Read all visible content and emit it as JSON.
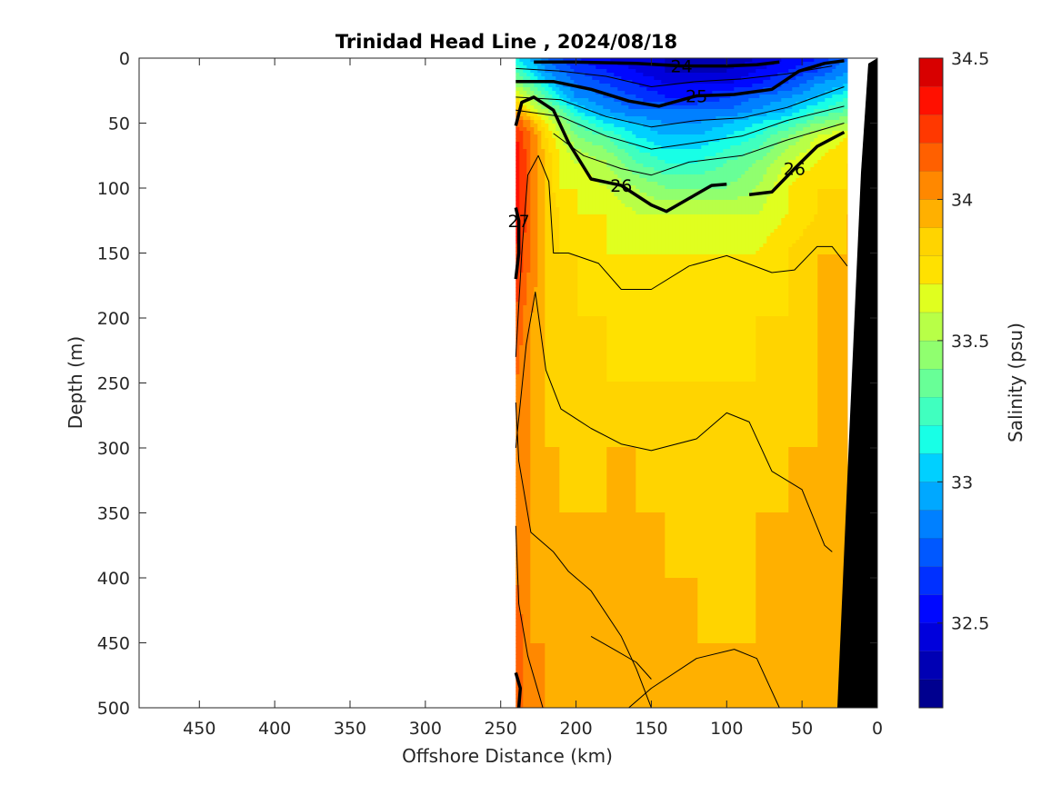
{
  "chart_data": {
    "type": "heatmap",
    "title": "Trinidad Head Line , 2024/08/18",
    "xlabel": "Offshore Distance (km)",
    "ylabel": "Depth (m)",
    "colorbar_label": "Salinity (psu)",
    "xlim": [
      490,
      0
    ],
    "ylim": [
      0,
      500
    ],
    "x_reversed": true,
    "y_reversed": true,
    "xticks": [
      450,
      400,
      350,
      300,
      250,
      200,
      150,
      100,
      50,
      0
    ],
    "yticks": [
      0,
      50,
      100,
      150,
      200,
      250,
      300,
      350,
      400,
      450,
      500
    ],
    "colorbar_range": [
      32.2,
      34.5
    ],
    "colorbar_step": 0.1,
    "colorbar_ticks": [
      32.5,
      33,
      33.5,
      34,
      34.5
    ],
    "colors": [
      "#00008f",
      "#0000b4",
      "#0000dc",
      "#0008ff",
      "#0030ff",
      "#0058ff",
      "#0080ff",
      "#00a8ff",
      "#00d0ff",
      "#18ffe6",
      "#40ffbf",
      "#68ff97",
      "#90ff6f",
      "#b8ff47",
      "#e0ff1f",
      "#ffe100",
      "#ffd400",
      "#ffb000",
      "#ff8800",
      "#ff6000",
      "#ff3800",
      "#ff1000",
      "#d80000",
      "#af0000"
    ],
    "data_extent_km": [
      240,
      20
    ],
    "bathymetry_color": "#000000",
    "x_km": [
      240,
      230,
      220,
      210,
      200,
      180,
      160,
      140,
      120,
      100,
      80,
      60,
      40,
      20
    ],
    "depth_m": [
      0,
      10,
      20,
      30,
      40,
      50,
      60,
      80,
      100,
      120,
      150,
      200,
      250,
      300,
      350,
      400,
      450,
      500
    ],
    "salinity": [
      [
        33.1,
        33.0,
        32.8,
        32.7,
        32.6,
        32.5,
        32.4,
        32.4,
        32.3,
        32.3,
        32.4,
        32.5,
        32.6,
        32.8
      ],
      [
        33.3,
        33.1,
        32.9,
        32.8,
        32.7,
        32.6,
        32.5,
        32.4,
        32.4,
        32.4,
        32.5,
        32.6,
        32.7,
        32.9
      ],
      [
        33.5,
        33.3,
        33.1,
        32.9,
        32.8,
        32.7,
        32.6,
        32.5,
        32.5,
        32.5,
        32.6,
        32.7,
        32.9,
        33.0
      ],
      [
        33.7,
        33.5,
        33.3,
        33.1,
        32.9,
        32.8,
        32.7,
        32.6,
        32.6,
        32.7,
        32.8,
        32.9,
        33.0,
        33.2
      ],
      [
        34.0,
        33.7,
        33.5,
        33.3,
        33.1,
        32.9,
        32.8,
        32.8,
        32.8,
        32.8,
        32.9,
        33.0,
        33.2,
        33.3
      ],
      [
        34.2,
        34.0,
        33.7,
        33.5,
        33.3,
        33.1,
        33.0,
        32.9,
        32.9,
        33.0,
        33.1,
        33.2,
        33.4,
        33.5
      ],
      [
        34.3,
        34.1,
        33.8,
        33.6,
        33.4,
        33.3,
        33.1,
        33.0,
        33.0,
        33.1,
        33.2,
        33.4,
        33.6,
        33.7
      ],
      [
        34.4,
        34.1,
        33.9,
        33.7,
        33.6,
        33.5,
        33.3,
        33.2,
        33.2,
        33.3,
        33.4,
        33.6,
        33.7,
        33.8
      ],
      [
        34.4,
        34.1,
        33.9,
        33.7,
        33.7,
        33.6,
        33.5,
        33.4,
        33.4,
        33.4,
        33.5,
        33.7,
        33.8,
        33.8
      ],
      [
        34.4,
        34.1,
        33.9,
        33.8,
        33.7,
        33.7,
        33.6,
        33.6,
        33.6,
        33.6,
        33.6,
        33.7,
        33.8,
        33.9
      ],
      [
        34.3,
        34.1,
        33.9,
        33.8,
        33.8,
        33.7,
        33.7,
        33.7,
        33.7,
        33.7,
        33.7,
        33.8,
        33.9,
        33.9
      ],
      [
        34.2,
        34.0,
        33.9,
        33.8,
        33.8,
        33.8,
        33.7,
        33.7,
        33.7,
        33.7,
        33.8,
        33.8,
        33.9,
        33.9
      ],
      [
        34.1,
        34.0,
        33.9,
        33.8,
        33.8,
        33.8,
        33.8,
        33.8,
        33.8,
        33.8,
        33.8,
        33.8,
        33.9,
        33.9
      ],
      [
        34.1,
        34.0,
        33.9,
        33.9,
        33.8,
        33.9,
        33.9,
        33.8,
        33.8,
        33.8,
        33.8,
        33.9,
        33.9,
        33.9
      ],
      [
        34.1,
        34.0,
        33.9,
        33.9,
        33.9,
        33.9,
        33.9,
        33.9,
        33.8,
        33.8,
        33.9,
        33.9,
        33.9,
        34.0
      ],
      [
        34.1,
        34.0,
        33.9,
        33.9,
        33.9,
        33.9,
        33.9,
        33.9,
        33.9,
        33.8,
        33.9,
        33.9,
        33.9,
        34.0
      ],
      [
        34.2,
        34.0,
        34.0,
        33.9,
        33.9,
        33.9,
        33.9,
        33.9,
        33.9,
        33.9,
        33.9,
        33.9,
        33.9,
        34.0
      ],
      [
        34.2,
        34.0,
        34.0,
        34.0,
        34.0,
        34.0,
        33.9,
        33.9,
        33.9,
        33.9,
        33.9,
        33.9,
        33.9,
        34.0
      ]
    ],
    "density_contours": [
      {
        "label": "24",
        "weight": "bold",
        "points": [
          [
            228,
            3
          ],
          [
            200,
            3
          ],
          [
            160,
            4
          ],
          [
            130,
            6
          ],
          [
            100,
            6
          ],
          [
            80,
            5
          ],
          [
            65,
            3
          ]
        ]
      },
      {
        "label": "25",
        "weight": "bold",
        "points": [
          [
            240,
            18
          ],
          [
            215,
            18
          ],
          [
            190,
            24
          ],
          [
            165,
            33
          ],
          [
            145,
            37
          ],
          [
            120,
            29
          ],
          [
            95,
            28
          ],
          [
            70,
            24
          ],
          [
            52,
            10
          ],
          [
            35,
            4
          ],
          [
            22,
            2
          ]
        ]
      },
      {
        "label": "26",
        "weight": "bold",
        "points": [
          [
            240,
            52
          ],
          [
            236,
            34
          ],
          [
            228,
            30
          ],
          [
            215,
            40
          ],
          [
            205,
            65
          ],
          [
            190,
            93
          ],
          [
            170,
            98
          ],
          [
            150,
            113
          ],
          [
            140,
            118
          ],
          [
            125,
            108
          ],
          [
            110,
            98
          ],
          [
            100,
            97
          ]
        ]
      },
      {
        "label": "26",
        "weight": "bold",
        "points": [
          [
            85,
            105
          ],
          [
            70,
            103
          ],
          [
            55,
            85
          ],
          [
            40,
            68
          ],
          [
            22,
            57
          ]
        ]
      },
      {
        "label": "27",
        "weight": "bold",
        "points": [
          [
            240,
            170
          ],
          [
            238,
            150
          ],
          [
            238,
            125
          ],
          [
            240,
            115
          ]
        ]
      },
      {
        "label": "",
        "weight": "bold",
        "points": [
          [
            240,
            473
          ],
          [
            237,
            485
          ],
          [
            238,
            500
          ]
        ]
      },
      {
        "label": "",
        "weight": "thin",
        "points": [
          [
            240,
            8
          ],
          [
            210,
            10
          ],
          [
            180,
            14
          ],
          [
            150,
            22
          ],
          [
            120,
            18
          ],
          [
            90,
            16
          ],
          [
            60,
            12
          ],
          [
            30,
            6
          ]
        ]
      },
      {
        "label": "",
        "weight": "thin",
        "points": [
          [
            240,
            30
          ],
          [
            210,
            32
          ],
          [
            180,
            45
          ],
          [
            150,
            53
          ],
          [
            120,
            48
          ],
          [
            90,
            46
          ],
          [
            60,
            38
          ],
          [
            22,
            22
          ]
        ]
      },
      {
        "label": "",
        "weight": "thin",
        "points": [
          [
            240,
            40
          ],
          [
            210,
            45
          ],
          [
            180,
            60
          ],
          [
            150,
            70
          ],
          [
            120,
            65
          ],
          [
            90,
            60
          ],
          [
            60,
            48
          ],
          [
            22,
            37
          ]
        ]
      },
      {
        "label": "",
        "weight": "thin",
        "points": [
          [
            215,
            58
          ],
          [
            195,
            75
          ],
          [
            170,
            85
          ],
          [
            150,
            90
          ],
          [
            125,
            80
          ],
          [
            90,
            75
          ],
          [
            60,
            63
          ],
          [
            22,
            50
          ]
        ]
      },
      {
        "label": "",
        "weight": "thin",
        "points": [
          [
            240,
            230
          ],
          [
            236,
            150
          ],
          [
            232,
            90
          ],
          [
            225,
            75
          ],
          [
            218,
            95
          ],
          [
            215,
            150
          ],
          [
            205,
            150
          ],
          [
            185,
            158
          ],
          [
            170,
            178
          ],
          [
            150,
            178
          ],
          [
            125,
            160
          ],
          [
            100,
            152
          ],
          [
            70,
            165
          ],
          [
            55,
            163
          ],
          [
            40,
            145
          ],
          [
            30,
            145
          ],
          [
            20,
            160
          ]
        ]
      },
      {
        "label": "",
        "weight": "thin",
        "points": [
          [
            240,
            300
          ],
          [
            233,
            220
          ],
          [
            227,
            180
          ],
          [
            220,
            240
          ],
          [
            210,
            270
          ],
          [
            190,
            285
          ],
          [
            170,
            297
          ],
          [
            150,
            302
          ],
          [
            120,
            293
          ],
          [
            100,
            273
          ],
          [
            85,
            280
          ],
          [
            70,
            318
          ],
          [
            50,
            332
          ],
          [
            35,
            375
          ],
          [
            30,
            380
          ]
        ]
      },
      {
        "label": "",
        "weight": "thin",
        "points": [
          [
            240,
            265
          ],
          [
            238,
            310
          ],
          [
            230,
            365
          ],
          [
            215,
            380
          ],
          [
            205,
            395
          ],
          [
            190,
            410
          ],
          [
            170,
            445
          ],
          [
            160,
            470
          ],
          [
            150,
            500
          ]
        ]
      },
      {
        "label": "",
        "weight": "thin",
        "points": [
          [
            240,
            360
          ],
          [
            238,
            420
          ],
          [
            232,
            460
          ],
          [
            222,
            500
          ]
        ]
      },
      {
        "label": "",
        "weight": "thin",
        "points": [
          [
            190,
            445
          ],
          [
            175,
            455
          ],
          [
            160,
            465
          ],
          [
            150,
            478
          ]
        ]
      },
      {
        "label": "",
        "weight": "thin",
        "points": [
          [
            165,
            500
          ],
          [
            150,
            485
          ],
          [
            120,
            462
          ],
          [
            95,
            455
          ],
          [
            80,
            462
          ],
          [
            65,
            500
          ]
        ]
      }
    ]
  }
}
